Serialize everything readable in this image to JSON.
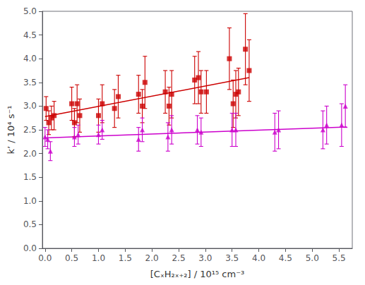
{
  "chart_data": {
    "type": "scatter",
    "xlabel": "[CₓH₂ₓ₊₂] / 10¹⁵ cm⁻³",
    "ylabel": "k’ / 10⁴ s⁻¹",
    "xlim": [
      -0.05,
      5.75
    ],
    "ylim": [
      0,
      5
    ],
    "xticks": [
      {
        "value": 0,
        "label": "0.0"
      },
      0.5,
      {
        "value": 1,
        "label": "1.0"
      },
      1.5,
      {
        "value": 2,
        "label": "2.0"
      },
      2.5,
      {
        "value": 3,
        "label": "3.0"
      },
      3.5,
      {
        "value": 4,
        "label": "4.0"
      },
      4.5,
      {
        "value": 5,
        "label": "5.0"
      },
      5.5
    ],
    "yticks": [
      {
        "value": 0,
        "label": "0.0"
      },
      0.5,
      {
        "value": 1,
        "label": "1.0"
      },
      1.5,
      {
        "value": 2,
        "label": "2.0"
      },
      2.5,
      {
        "value": 3,
        "label": "3.0"
      },
      3.5,
      {
        "value": 4,
        "label": "4.0"
      },
      4.5,
      {
        "value": 5,
        "label": "5.0"
      }
    ],
    "grid": false,
    "series": [
      {
        "type": "scatter",
        "marker": "square",
        "color": "#cc0000",
        "x": [
          0.02,
          0.07,
          0.12,
          0.17,
          0.5,
          0.55,
          0.6,
          0.65,
          1.0,
          1.07,
          1.3,
          1.37,
          1.75,
          1.82,
          1.87,
          2.25,
          2.32,
          2.37,
          2.8,
          2.87,
          2.92,
          3.02,
          3.45,
          3.52,
          3.57,
          3.62,
          3.75,
          3.82
        ],
        "values": [
          2.95,
          2.65,
          2.75,
          2.8,
          3.05,
          2.65,
          3.05,
          2.8,
          2.8,
          3.05,
          2.95,
          3.2,
          3.25,
          3.0,
          3.5,
          3.3,
          3.0,
          3.25,
          3.55,
          3.6,
          3.3,
          3.3,
          4.0,
          3.05,
          3.25,
          3.3,
          4.2,
          3.75
        ],
        "yerr": [
          0.25,
          0.25,
          0.25,
          0.3,
          0.35,
          0.3,
          0.4,
          0.35,
          0.35,
          0.4,
          0.4,
          0.45,
          0.4,
          0.35,
          0.55,
          0.45,
          0.4,
          0.5,
          0.5,
          0.55,
          0.45,
          0.45,
          0.65,
          0.5,
          0.5,
          0.5,
          0.75,
          0.65
        ]
      },
      {
        "type": "line",
        "color": "#cc0000",
        "x": [
          0,
          3.82
        ],
        "values": [
          2.78,
          3.6
        ]
      },
      {
        "type": "scatter",
        "marker": "triangle",
        "color": "#cc00cc",
        "x": [
          0.0,
          0.05,
          0.1,
          0.55,
          0.62,
          1.0,
          1.07,
          1.75,
          1.82,
          2.3,
          2.37,
          2.85,
          2.92,
          3.5,
          3.57,
          4.3,
          4.37,
          5.2,
          5.27,
          5.55,
          5.62
        ],
        "values": [
          2.35,
          2.3,
          2.05,
          2.35,
          2.4,
          2.4,
          2.5,
          2.3,
          2.5,
          2.35,
          2.5,
          2.5,
          2.45,
          2.5,
          2.5,
          2.45,
          2.5,
          2.5,
          2.6,
          2.6,
          3.0
        ],
        "yerr": [
          0.2,
          0.2,
          0.2,
          0.2,
          0.2,
          0.2,
          0.2,
          0.25,
          0.25,
          0.3,
          0.3,
          0.3,
          0.3,
          0.35,
          0.35,
          0.4,
          0.4,
          0.4,
          0.4,
          0.45,
          0.45
        ]
      },
      {
        "type": "line",
        "color": "#cc00cc",
        "x": [
          0,
          5.65
        ],
        "values": [
          2.33,
          2.56
        ]
      }
    ]
  }
}
